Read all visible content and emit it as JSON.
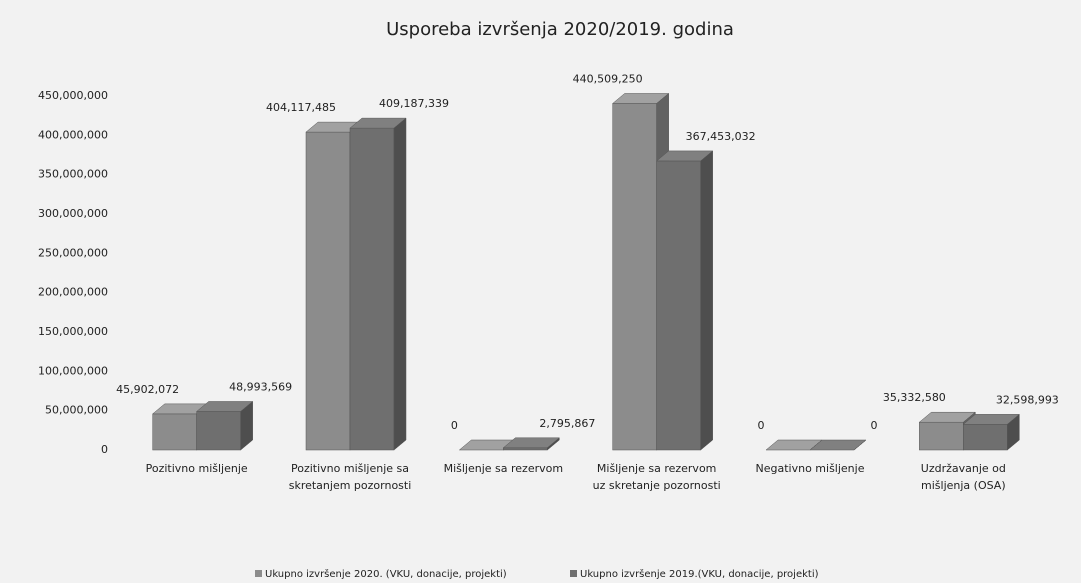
{
  "chart_data": {
    "type": "bar3d",
    "title": "Usporeba izvršenja 2020/2019. godina",
    "categories": [
      "Pozitivno mišljenje",
      "Pozitivno mišljenje sa skretanjem pozornosti",
      "Mišljenje sa rezervom",
      "Mišljenje sa rezervom uz skretanje pozornosti",
      "Negativno mišljenje",
      "Uzdržavanje od mišljenja (OSA)"
    ],
    "series": [
      {
        "name": "Ukupno izvršenje 2020. (VKU, donacije, projekti)",
        "color": "#8c8c8c",
        "values": [
          45902072,
          404117485,
          0,
          440509250,
          0,
          35332580
        ],
        "value_labels": [
          "45,902,072",
          "404,117,485",
          "0",
          "440,509,250",
          "0",
          "35,332,580"
        ]
      },
      {
        "name": "Ukupno izvršenje 2019.(VKU, donacije, projekti)",
        "color": "#6f6f6f",
        "values": [
          48993569,
          409187339,
          2795867,
          367453032,
          0,
          32598993
        ],
        "value_labels": [
          "48,993,569",
          "409,187,339",
          "2,795,867",
          "367,453,032",
          "0",
          "32,598,993"
        ]
      }
    ],
    "ylim": [
      0,
      450000000
    ],
    "yticks": [
      0,
      {
        "value": 50000000,
        "label": "50,000,000"
      },
      {
        "value": 100000000,
        "label": "100,000,000"
      },
      {
        "value": 150000000,
        "label": "150,000,000"
      },
      {
        "value": 200000000,
        "label": "200,000,000"
      },
      {
        "value": 250000000,
        "label": "250,000,000"
      },
      {
        "value": 300000000,
        "label": "300,000,000"
      },
      {
        "value": 350000000,
        "label": "350,000,000"
      },
      {
        "value": 400000000,
        "label": "400,000,000"
      },
      {
        "value": 450000000,
        "label": "450,000,000"
      }
    ],
    "grid": false
  }
}
